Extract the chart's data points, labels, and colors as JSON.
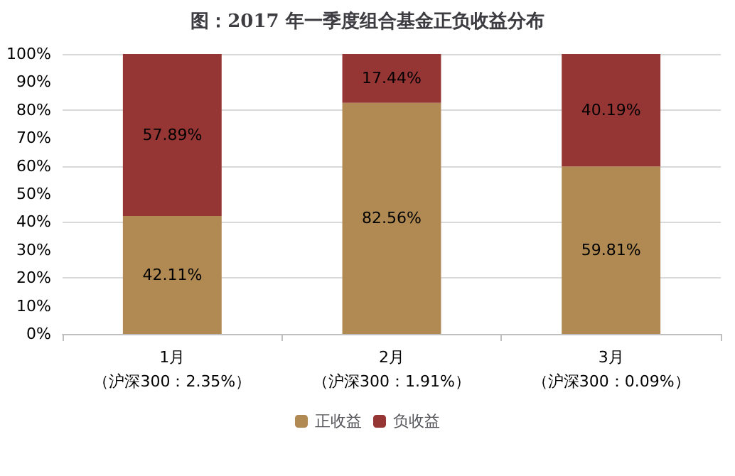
{
  "chart_data": {
    "type": "bar",
    "title": "图：2017 年一季度组合基金正负收益分布",
    "stacked": true,
    "categories": [
      "1月（沪深300：2.35%）",
      "2月（沪深300：1.91%）",
      "3月（沪深300：0.09%）"
    ],
    "series": [
      {
        "name": "正收益",
        "color": "#b08a52",
        "values": [
          42.11,
          82.56,
          59.81
        ],
        "value_labels": [
          "42.11%",
          "82.56%",
          "59.81%"
        ]
      },
      {
        "name": "负收益",
        "color": "#963634",
        "values": [
          57.89,
          17.44,
          40.19
        ],
        "value_labels": [
          "57.89%",
          "17.44%",
          "40.19%"
        ]
      }
    ],
    "ylim": [
      0,
      100
    ],
    "yticks": [
      {
        "value": 0,
        "label": "0%"
      },
      {
        "value": 10,
        "label": "10%"
      },
      {
        "value": 20,
        "label": "20%"
      },
      {
        "value": 30,
        "label": "30%"
      },
      {
        "value": 40,
        "label": "40%"
      },
      {
        "value": 50,
        "label": "50%"
      },
      {
        "value": 60,
        "label": "60%"
      },
      {
        "value": 70,
        "label": "70%"
      },
      {
        "value": 80,
        "label": "80%"
      },
      {
        "value": 90,
        "label": "90%"
      },
      {
        "value": 100,
        "label": "100%"
      }
    ],
    "grid": "y",
    "legend": "bottom"
  }
}
